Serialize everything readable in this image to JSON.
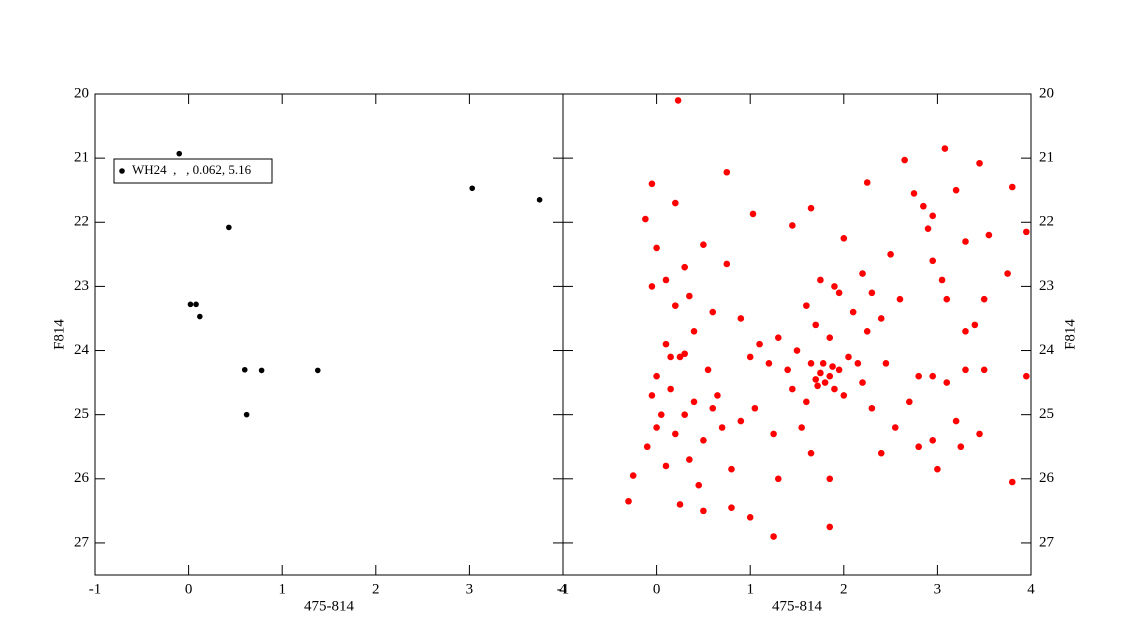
{
  "chart_data": [
    {
      "type": "scatter",
      "xlabel": "475-814",
      "ylabel": "F814",
      "xlim": [
        -1,
        4
      ],
      "ylim": [
        27.5,
        20
      ],
      "xticks": [
        -1,
        0,
        1,
        2,
        3,
        4
      ],
      "yticks": [
        20,
        21,
        22,
        23,
        24,
        25,
        26,
        27
      ],
      "yaxis_side": "left",
      "series": [
        {
          "name": "WH24  ,   , 0.062, 5.16",
          "color": "#000000",
          "x": [
            -0.1,
            0.43,
            0.02,
            0.08,
            0.12,
            0.6,
            0.78,
            1.38,
            0.62,
            3.03,
            3.75
          ],
          "values": [
            20.93,
            22.08,
            23.28,
            23.28,
            23.47,
            24.3,
            24.31,
            24.31,
            25.0,
            21.47,
            21.65
          ]
        }
      ]
    },
    {
      "type": "scatter",
      "xlabel": "475-814",
      "ylabel": "F814",
      "xlim": [
        -1,
        4
      ],
      "ylim": [
        27.5,
        20
      ],
      "xticks": [
        -1,
        0,
        1,
        2,
        3,
        4
      ],
      "yticks": [
        20,
        21,
        22,
        23,
        24,
        25,
        26,
        27
      ],
      "yaxis_side": "right",
      "series": [
        {
          "color": "#ff0000",
          "x": [
            0.23,
            -0.05,
            0.75,
            1.03,
            1.45,
            1.65,
            2.25,
            2.65,
            3.08,
            3.45,
            3.8,
            3.95,
            3.3,
            2.9,
            2.75,
            2.5,
            2.2,
            2.0,
            1.9,
            1.75,
            1.6,
            1.7,
            1.85,
            2.1,
            2.3,
            2.4,
            2.6,
            1.5,
            1.65,
            1.75,
            1.8,
            1.85,
            1.9,
            1.72,
            1.78,
            1.95,
            2.0,
            1.6,
            1.7,
            1.88,
            2.05,
            2.2,
            2.3,
            1.4,
            1.3,
            1.55,
            1.65,
            1.85,
            1.85,
            1.25,
            1.0,
            0.8,
            0.5,
            0.25,
            -0.3,
            -0.25,
            -0.1,
            0.0,
            0.1,
            0.2,
            0.3,
            0.4,
            0.5,
            0.6,
            0.15,
            0.25,
            0.3,
            0.1,
            0.0,
            -0.05,
            0.05,
            0.35,
            0.45,
            0.7,
            0.55,
            0.4,
            0.2,
            0.1,
            -0.05,
            0.0,
            -0.12,
            0.2,
            0.5,
            0.75,
            0.3,
            0.6,
            0.9,
            1.0,
            1.1,
            1.2,
            1.05,
            0.9,
            1.25,
            1.3,
            0.8,
            2.4,
            2.55,
            2.7,
            2.8,
            2.95,
            3.1,
            3.3,
            3.5,
            3.2,
            3.25,
            3.45,
            2.8,
            2.95,
            3.0,
            3.8,
            3.95,
            3.5,
            3.4,
            3.3,
            3.1,
            3.05,
            2.95,
            3.75,
            3.55,
            2.85,
            2.95,
            3.2,
            2.15,
            1.95,
            2.25,
            2.45,
            1.45,
            0.35,
            0.65,
            0.15
          ],
          "values": [
            20.1,
            21.4,
            21.22,
            21.87,
            22.05,
            21.78,
            21.38,
            21.03,
            20.85,
            21.08,
            21.45,
            22.15,
            22.3,
            22.1,
            21.55,
            22.5,
            22.8,
            22.25,
            23.0,
            22.9,
            23.3,
            23.6,
            23.8,
            23.4,
            23.1,
            23.5,
            23.2,
            24.0,
            24.2,
            24.35,
            24.5,
            24.4,
            24.6,
            24.55,
            24.2,
            24.3,
            24.7,
            24.8,
            24.45,
            24.25,
            24.1,
            24.5,
            24.9,
            24.3,
            23.8,
            25.2,
            25.6,
            26.0,
            26.75,
            26.9,
            26.6,
            26.45,
            26.5,
            26.4,
            26.35,
            25.95,
            25.5,
            25.2,
            25.8,
            25.3,
            25.0,
            24.8,
            25.4,
            24.9,
            24.6,
            24.1,
            24.05,
            23.9,
            24.4,
            24.7,
            25.0,
            25.7,
            26.1,
            25.2,
            24.3,
            23.7,
            23.3,
            22.9,
            23.0,
            22.4,
            21.95,
            21.7,
            22.35,
            22.65,
            22.7,
            23.4,
            23.5,
            24.1,
            23.9,
            24.2,
            24.9,
            25.1,
            25.3,
            26.0,
            25.85,
            25.6,
            25.2,
            24.8,
            24.4,
            24.4,
            24.5,
            24.3,
            24.3,
            25.1,
            25.5,
            25.3,
            25.5,
            25.4,
            25.85,
            26.05,
            24.4,
            23.2,
            23.6,
            23.7,
            23.2,
            22.9,
            22.6,
            22.8,
            22.2,
            21.75,
            21.9,
            21.5,
            24.2,
            23.1,
            23.7,
            24.2,
            24.6,
            23.15,
            24.7,
            24.1
          ]
        }
      ]
    }
  ]
}
